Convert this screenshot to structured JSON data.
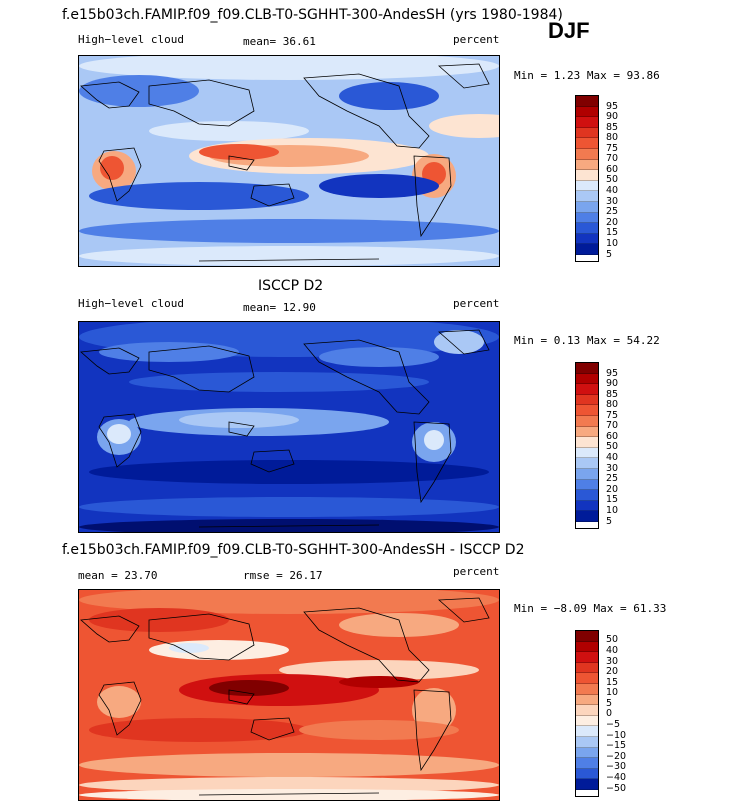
{
  "season": "DJF",
  "panels": [
    {
      "title": "f.e15b03ch.FAMIP.f09_f09.CLB-T0-SGHHT-300-AndesSH (yrs 1980-1984)",
      "left_label": "High−level cloud",
      "center_label": "mean=  36.61",
      "right_label": "percent",
      "minmax": "Min =   1.23 Max =  93.86",
      "colorbar_labels": [
        "95",
        "90",
        "85",
        "80",
        "75",
        "70",
        "60",
        "50",
        "40",
        "30",
        "25",
        "20",
        "15",
        "10",
        "5"
      ]
    },
    {
      "title": "ISCCP D2",
      "left_label": "High−level cloud",
      "center_label": "mean=  12.90",
      "right_label": "percent",
      "minmax": "Min =   0.13 Max =  54.22",
      "colorbar_labels": [
        "95",
        "90",
        "85",
        "80",
        "75",
        "70",
        "60",
        "50",
        "40",
        "30",
        "25",
        "20",
        "15",
        "10",
        "5"
      ]
    },
    {
      "title": "f.e15b03ch.FAMIP.f09_f09.CLB-T0-SGHHT-300-AndesSH - ISCCP D2",
      "left_label": "mean =  23.70",
      "center_label": "rmse =  26.17",
      "right_label": "percent",
      "minmax": "Min =  −8.09 Max =  61.33",
      "colorbar_labels": [
        "50",
        "40",
        "30",
        "20",
        "15",
        "10",
        "5",
        "0",
        "−5",
        "−10",
        "−15",
        "−20",
        "−30",
        "−40",
        "−50"
      ]
    }
  ],
  "colors": {
    "abs_scale": [
      "#800000",
      "#b00000",
      "#d01010",
      "#e03520",
      "#ee5533",
      "#f27a50",
      "#f7a980",
      "#fde4d2",
      "#dbe9fb",
      "#aac8f5",
      "#7aa5ee",
      "#4f7fe6",
      "#2a58d6",
      "#1234bf",
      "#001b99",
      "#000f70"
    ],
    "diff_scale": [
      "#800000",
      "#b00000",
      "#d01010",
      "#e03520",
      "#ee5533",
      "#f27a50",
      "#f7a980",
      "#fcd5bd",
      "#fdeee2",
      "#dbe9fb",
      "#aac8f5",
      "#7aa5ee",
      "#4f7fe6",
      "#2a58d6",
      "#1234bf",
      "#001b99"
    ]
  }
}
